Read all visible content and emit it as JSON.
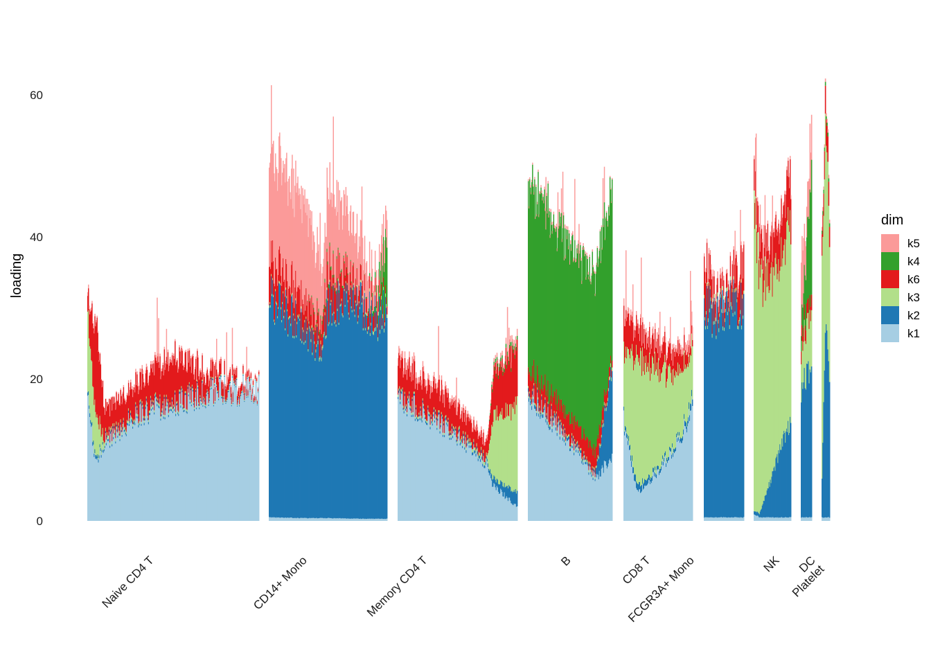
{
  "chart_data": {
    "type": "bar",
    "subtype": "stacked-structure-plot",
    "title": "",
    "xlabel": "",
    "ylabel": "loading",
    "ylim": [
      0,
      70
    ],
    "yticks": [
      0,
      20,
      40,
      60
    ],
    "grid": false,
    "legend": {
      "title": "dim",
      "position": "right"
    },
    "stack_order": [
      "k1",
      "k2",
      "k3",
      "k6",
      "k4",
      "k5"
    ],
    "colors": {
      "k1": "#a6cee3",
      "k2": "#1f78b4",
      "k3": "#b2df8a",
      "k4": "#33a02c",
      "k5": "#fb9a99",
      "k6": "#e31a1c"
    },
    "legend_order": [
      "k5",
      "k4",
      "k6",
      "k3",
      "k2",
      "k1"
    ],
    "categories": [
      "Naive CD4 T",
      "CD14+ Mono",
      "Memory CD4 T",
      "B",
      "CD8 T",
      "FCGR3A+ Mono",
      "NK",
      "DC",
      "Platelet"
    ],
    "groups": [
      {
        "name": "Naive CD4 T",
        "n_cells": 240,
        "profile": [
          {
            "p": 0.0,
            "k1": 17,
            "k2": 0.5,
            "k3": 11,
            "k6": 2,
            "k4": 0,
            "k5": 0.5
          },
          {
            "p": 0.05,
            "k1": 8,
            "k2": 0.5,
            "k3": 6,
            "k6": 13,
            "k4": 0,
            "k5": 0.3
          },
          {
            "p": 0.1,
            "k1": 11,
            "k2": 0.3,
            "k3": 0.5,
            "k6": 4,
            "k4": 0,
            "k5": 0
          },
          {
            "p": 0.3,
            "k1": 15,
            "k2": 0.3,
            "k3": 0.3,
            "k6": 4,
            "k4": 0,
            "k5": 0.5
          },
          {
            "p": 0.5,
            "k1": 16.5,
            "k2": 0.3,
            "k3": 0.3,
            "k6": 6.5,
            "k4": 0,
            "k5": 0.3
          },
          {
            "p": 0.7,
            "k1": 18,
            "k2": 0.2,
            "k3": 0.2,
            "k6": 2.5,
            "k4": 0,
            "k5": 0.3
          },
          {
            "p": 1.0,
            "k1": 18.5,
            "k2": 0.1,
            "k3": 0.1,
            "k6": 0.4,
            "k4": 0,
            "k5": 0.2
          }
        ]
      },
      {
        "name": "CD14+ Mono",
        "n_cells": 170,
        "profile": [
          {
            "p": 0.0,
            "k1": 0.5,
            "k2": 31,
            "k3": 0.3,
            "k6": 5,
            "k4": 0,
            "k5": 15.5
          },
          {
            "p": 0.3,
            "k1": 0.4,
            "k2": 27,
            "k3": 0.3,
            "k6": 4,
            "k4": 0,
            "k5": 14
          },
          {
            "p": 0.45,
            "k1": 0.4,
            "k2": 24,
            "k3": 0.5,
            "k6": 3,
            "k4": 0.5,
            "k5": 7
          },
          {
            "p": 0.5,
            "k1": 0.4,
            "k2": 30,
            "k3": 0.3,
            "k6": 5,
            "k4": 0.5,
            "k5": 11
          },
          {
            "p": 0.8,
            "k1": 0.3,
            "k2": 30,
            "k3": 0.3,
            "k6": 2,
            "k4": 0,
            "k5": 6
          },
          {
            "p": 0.92,
            "k1": 0.3,
            "k2": 28,
            "k3": 0.5,
            "k6": 2,
            "k4": 1,
            "k5": 2
          },
          {
            "p": 1.0,
            "k1": 0.3,
            "k2": 30,
            "k3": 0.5,
            "k6": 1,
            "k4": 9,
            "k5": 4
          }
        ]
      },
      {
        "name": "Memory CD4 T",
        "n_cells": 160,
        "profile": [
          {
            "p": 0.0,
            "k1": 17.5,
            "k2": 0.3,
            "k3": 0.3,
            "k6": 4.5,
            "k4": 0,
            "k5": 1
          },
          {
            "p": 0.4,
            "k1": 13,
            "k2": 0.3,
            "k3": 0.3,
            "k6": 4,
            "k4": 0,
            "k5": 0.6
          },
          {
            "p": 0.75,
            "k1": 8,
            "k2": 0.4,
            "k3": 0.5,
            "k6": 2,
            "k4": 0,
            "k5": 0.5
          },
          {
            "p": 0.8,
            "k1": 5,
            "k2": 1,
            "k3": 9,
            "k6": 6,
            "k4": 0.5,
            "k5": 0.5
          },
          {
            "p": 1.0,
            "k1": 2,
            "k2": 2,
            "k3": 12,
            "k6": 8,
            "k4": 0.5,
            "k5": 1
          }
        ]
      },
      {
        "name": "B",
        "n_cells": 120,
        "profile": [
          {
            "p": 0.0,
            "k1": 18,
            "k2": 0.5,
            "k3": 0.3,
            "k6": 3,
            "k4": 26,
            "k5": 0.3
          },
          {
            "p": 0.5,
            "k1": 11,
            "k2": 0.4,
            "k3": 0.3,
            "k6": 3,
            "k4": 24,
            "k5": 0.5
          },
          {
            "p": 0.8,
            "k1": 6,
            "k2": 0.3,
            "k3": 0.3,
            "k6": 3,
            "k4": 25,
            "k5": 0.3
          },
          {
            "p": 1.0,
            "k1": 9,
            "k2": 13,
            "k3": 0.5,
            "k6": 1,
            "k4": 24,
            "k5": 0.2
          }
        ]
      },
      {
        "name": "CD8 T",
        "n_cells": 100,
        "profile": [
          {
            "p": 0.0,
            "k1": 14,
            "k2": 0.5,
            "k3": 9,
            "k6": 5,
            "k4": 0,
            "k5": 1
          },
          {
            "p": 0.2,
            "k1": 4,
            "k2": 1,
            "k3": 18,
            "k6": 4,
            "k4": 0,
            "k5": 0.5
          },
          {
            "p": 0.5,
            "k1": 7,
            "k2": 0.5,
            "k3": 14,
            "k6": 3,
            "k4": 0,
            "k5": 1
          },
          {
            "p": 0.8,
            "k1": 11,
            "k2": 0.5,
            "k3": 9,
            "k6": 3,
            "k4": 0,
            "k5": 0.5
          },
          {
            "p": 1.0,
            "k1": 16,
            "k2": 1,
            "k3": 7,
            "k6": 1,
            "k4": 0,
            "k5": 2
          }
        ]
      },
      {
        "name": "FCGR3A+ Mono",
        "n_cells": 60,
        "profile": [
          {
            "p": 0.0,
            "k1": 0.5,
            "k2": 30,
            "k3": 0.5,
            "k6": 6,
            "k4": 0,
            "k5": 0.5
          },
          {
            "p": 0.3,
            "k1": 0.5,
            "k2": 28,
            "k3": 0.5,
            "k6": 2,
            "k4": 0,
            "k5": 1
          },
          {
            "p": 0.6,
            "k1": 0.5,
            "k2": 30,
            "k3": 0.5,
            "k6": 2,
            "k4": 0,
            "k5": 0.5
          },
          {
            "p": 1.0,
            "k1": 0.5,
            "k2": 30,
            "k3": 0.5,
            "k6": 6,
            "k4": 0,
            "k5": 0.5
          }
        ]
      },
      {
        "name": "NK",
        "n_cells": 55,
        "profile": [
          {
            "p": 0.0,
            "k1": 1,
            "k2": 0.5,
            "k3": 43,
            "k6": 4,
            "k4": 0,
            "k5": 0.5
          },
          {
            "p": 0.15,
            "k1": 0.5,
            "k2": 0.5,
            "k3": 33,
            "k6": 4,
            "k4": 0,
            "k5": 0.5
          },
          {
            "p": 0.5,
            "k1": 0.5,
            "k2": 6,
            "k3": 27,
            "k6": 5,
            "k4": 0,
            "k5": 0.5
          },
          {
            "p": 1.0,
            "k1": 0.5,
            "k2": 14,
            "k3": 27,
            "k6": 7,
            "k4": 0,
            "k5": 0.5
          }
        ]
      },
      {
        "name": "DC",
        "n_cells": 14,
        "profile": [
          {
            "p": 0.0,
            "k1": 0.5,
            "k2": 18,
            "k3": 5,
            "k6": 2,
            "k4": 2,
            "k5": 10
          },
          {
            "p": 0.5,
            "k1": 0.5,
            "k2": 20,
            "k3": 7,
            "k6": 2,
            "k4": 8,
            "k5": 4
          },
          {
            "p": 1.0,
            "k1": 0.5,
            "k2": 22,
            "k3": 8,
            "k6": 2,
            "k4": 20,
            "k5": 6
          }
        ]
      },
      {
        "name": "Platelet",
        "n_cells": 10,
        "profile": [
          {
            "p": 0.0,
            "k1": 0.5,
            "k2": 5,
            "k3": 30,
            "k6": 3,
            "k4": 0.5,
            "k5": 0.5
          },
          {
            "p": 0.5,
            "k1": 0.5,
            "k2": 30,
            "k3": 29,
            "k6": 4,
            "k4": 0.5,
            "k5": 0.5
          },
          {
            "p": 1.0,
            "k1": 0.5,
            "k2": 20,
            "k3": 20,
            "k6": 3,
            "k4": 0.5,
            "k5": 0.5
          }
        ]
      }
    ],
    "x_tick_labels": [
      {
        "group": "Naive CD4 T",
        "lines": [
          "Naive CD4 T"
        ]
      },
      {
        "group": "CD14+ Mono",
        "lines": [
          "CD14+ Mono"
        ]
      },
      {
        "group": "Memory CD4 T",
        "lines": [
          "Memory CD4 T"
        ]
      },
      {
        "group": "B",
        "lines": [
          "B"
        ]
      },
      {
        "group": "CD8 T",
        "lines": [
          "CD8 T"
        ]
      },
      {
        "group": "FCGR3A+ Mono",
        "lines": [
          "FCGR3A+ Mono"
        ]
      },
      {
        "group": "NK",
        "lines": [
          "NK"
        ]
      },
      {
        "group": "DC",
        "lines": [
          "DC",
          "Platelet"
        ]
      }
    ]
  }
}
